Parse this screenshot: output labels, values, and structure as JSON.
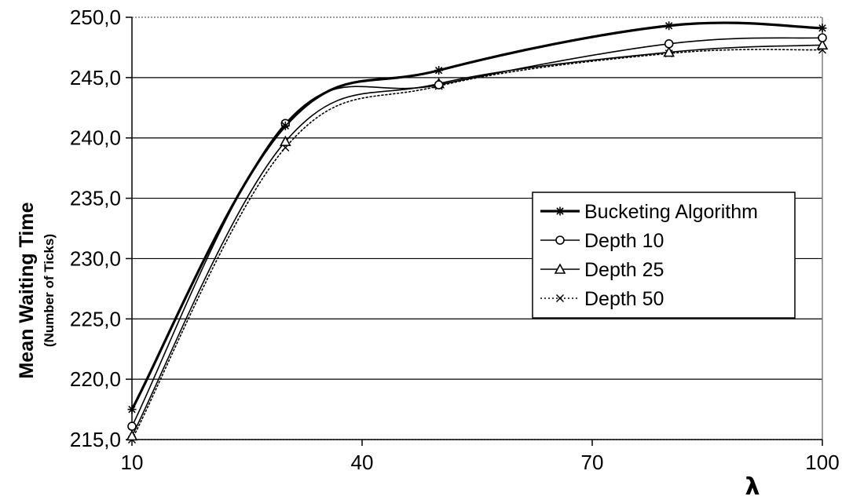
{
  "chart_data": {
    "type": "line",
    "xlabel": "λ",
    "ylabel": "Mean Waiting Time",
    "ylabel_sub": "(Number of Ticks)",
    "xlim": [
      10,
      100
    ],
    "ylim": [
      215,
      250
    ],
    "x_ticks": [
      10,
      40,
      70,
      100
    ],
    "x_tick_labels": [
      "10",
      "40",
      "70",
      "100"
    ],
    "y_ticks": [
      215,
      220,
      225,
      230,
      235,
      240,
      245,
      250
    ],
    "y_tick_labels": [
      "215,0",
      "220,0",
      "225,0",
      "230,0",
      "235,0",
      "240,0",
      "245,0",
      "250,0"
    ],
    "grid": "horizontal",
    "legend_position": "right-middle",
    "x": [
      10,
      30,
      50,
      80,
      100
    ],
    "series": [
      {
        "name": "Bucketing Algorithm",
        "marker": "asterisk",
        "style": "solid-thick",
        "values": [
          217.5,
          241.0,
          245.6,
          249.3,
          249.1
        ]
      },
      {
        "name": "Depth 10",
        "marker": "circle",
        "style": "solid",
        "values": [
          216.1,
          241.2,
          244.4,
          247.8,
          248.3
        ]
      },
      {
        "name": "Depth 25",
        "marker": "triangle",
        "style": "solid",
        "values": [
          215.3,
          239.7,
          244.5,
          247.1,
          247.7
        ]
      },
      {
        "name": "Depth 50",
        "marker": "x",
        "style": "dotted",
        "values": [
          215.0,
          239.2,
          244.3,
          247.0,
          247.3
        ]
      }
    ]
  }
}
